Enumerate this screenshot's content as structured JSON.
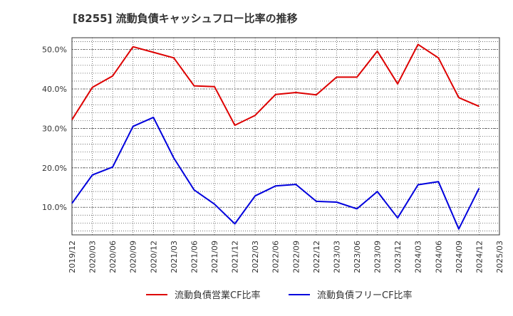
{
  "chart_data": {
    "type": "line",
    "title": "[8255]  流動負債キャッシュフロー比率の推移",
    "categories": [
      "2019/12",
      "2020/03",
      "2020/06",
      "2020/09",
      "2020/12",
      "2021/03",
      "2021/06",
      "2021/09",
      "2021/12",
      "2022/03",
      "2022/06",
      "2022/09",
      "2022/12",
      "2023/03",
      "2023/06",
      "2023/09",
      "2023/12",
      "2024/03",
      "2024/06",
      "2024/09",
      "2024/12",
      "2025/03"
    ],
    "series": [
      {
        "name": "流動負債営業CF比率",
        "color": "#dd0000",
        "values": [
          32.2,
          40.4,
          43.3,
          50.7,
          49.3,
          47.9,
          40.8,
          40.6,
          30.8,
          33.3,
          38.6,
          39.1,
          38.5,
          43.0,
          43.0,
          49.6,
          41.3,
          51.3,
          47.9,
          37.8,
          35.6,
          null
        ]
      },
      {
        "name": "流動負債フリーCF比率",
        "color": "#0000dd",
        "values": [
          11.0,
          18.2,
          20.2,
          30.5,
          32.8,
          22.5,
          14.4,
          10.8,
          5.8,
          12.9,
          15.4,
          15.8,
          11.5,
          11.3,
          9.6,
          14.0,
          7.3,
          15.7,
          16.5,
          4.5,
          14.8,
          null
        ]
      }
    ],
    "y_ticks": [
      "10.0%",
      "20.0%",
      "30.0%",
      "40.0%",
      "50.0%"
    ],
    "y_tick_values": [
      10,
      20,
      30,
      40,
      50
    ],
    "ylim": [
      3,
      53
    ],
    "grid": true,
    "legend_position": "bottom"
  }
}
